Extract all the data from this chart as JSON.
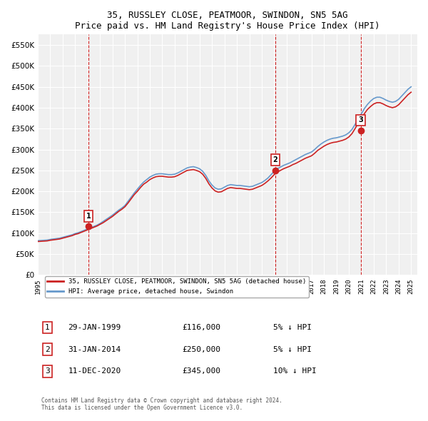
{
  "title": "35, RUSSLEY CLOSE, PEATMOOR, SWINDON, SN5 5AG",
  "subtitle": "Price paid vs. HM Land Registry's House Price Index (HPI)",
  "ylabel_ticks": [
    0,
    50000,
    100000,
    150000,
    200000,
    250000,
    300000,
    350000,
    400000,
    450000,
    500000,
    550000
  ],
  "ylim": [
    0,
    575000
  ],
  "xlim_start": 1995.0,
  "xlim_end": 2025.5,
  "background_color": "#ffffff",
  "plot_bg_color": "#f0f0f0",
  "grid_color": "#ffffff",
  "hpi_color": "#6699cc",
  "price_color": "#cc2222",
  "sale_marker_color": "#cc2222",
  "sales": [
    {
      "date_num": 1999.08,
      "price": 116000,
      "label": "1"
    },
    {
      "date_num": 2014.08,
      "price": 250000,
      "label": "2"
    },
    {
      "date_num": 2020.95,
      "price": 345000,
      "label": "3"
    }
  ],
  "sale_dates_str": [
    "29-JAN-1999",
    "31-JAN-2014",
    "11-DEC-2020"
  ],
  "sale_prices_str": [
    "£116,000",
    "£250,000",
    "£345,000"
  ],
  "sale_pct": [
    "5% ↓ HPI",
    "5% ↓ HPI",
    "10% ↓ HPI"
  ],
  "legend_house_label": "35, RUSSLEY CLOSE, PEATMOOR, SWINDON, SN5 5AG (detached house)",
  "legend_hpi_label": "HPI: Average price, detached house, Swindon",
  "footnote": "Contains HM Land Registry data © Crown copyright and database right 2024.\nThis data is licensed under the Open Government Licence v3.0.",
  "hpi_data_x": [
    1995.0,
    1995.25,
    1995.5,
    1995.75,
    1996.0,
    1996.25,
    1996.5,
    1996.75,
    1997.0,
    1997.25,
    1997.5,
    1997.75,
    1998.0,
    1998.25,
    1998.5,
    1998.75,
    1999.0,
    1999.25,
    1999.5,
    1999.75,
    2000.0,
    2000.25,
    2000.5,
    2000.75,
    2001.0,
    2001.25,
    2001.5,
    2001.75,
    2002.0,
    2002.25,
    2002.5,
    2002.75,
    2003.0,
    2003.25,
    2003.5,
    2003.75,
    2004.0,
    2004.25,
    2004.5,
    2004.75,
    2005.0,
    2005.25,
    2005.5,
    2005.75,
    2006.0,
    2006.25,
    2006.5,
    2006.75,
    2007.0,
    2007.25,
    2007.5,
    2007.75,
    2008.0,
    2008.25,
    2008.5,
    2008.75,
    2009.0,
    2009.25,
    2009.5,
    2009.75,
    2010.0,
    2010.25,
    2010.5,
    2010.75,
    2011.0,
    2011.25,
    2011.5,
    2011.75,
    2012.0,
    2012.25,
    2012.5,
    2012.75,
    2013.0,
    2013.25,
    2013.5,
    2013.75,
    2014.0,
    2014.25,
    2014.5,
    2014.75,
    2015.0,
    2015.25,
    2015.5,
    2015.75,
    2016.0,
    2016.25,
    2016.5,
    2016.75,
    2017.0,
    2017.25,
    2017.5,
    2017.75,
    2018.0,
    2018.25,
    2018.5,
    2018.75,
    2019.0,
    2019.25,
    2019.5,
    2019.75,
    2020.0,
    2020.25,
    2020.5,
    2020.75,
    2021.0,
    2021.25,
    2021.5,
    2021.75,
    2022.0,
    2022.25,
    2022.5,
    2022.75,
    2023.0,
    2023.25,
    2023.5,
    2023.75,
    2024.0,
    2024.25,
    2024.5,
    2024.75,
    2025.0
  ],
  "hpi_data_y": [
    82000,
    82500,
    83000,
    83500,
    85000,
    86000,
    87000,
    88000,
    90000,
    92000,
    94000,
    96000,
    99000,
    101000,
    104000,
    107000,
    110000,
    113000,
    116000,
    119000,
    123000,
    128000,
    133000,
    138000,
    143000,
    149000,
    155000,
    160000,
    166000,
    176000,
    186000,
    196000,
    205000,
    214000,
    222000,
    228000,
    234000,
    238000,
    241000,
    242000,
    242000,
    241000,
    240000,
    240000,
    241000,
    244000,
    248000,
    252000,
    256000,
    258000,
    259000,
    257000,
    254000,
    248000,
    238000,
    225000,
    215000,
    208000,
    205000,
    206000,
    210000,
    214000,
    216000,
    215000,
    214000,
    214000,
    213000,
    212000,
    211000,
    212000,
    215000,
    218000,
    221000,
    226000,
    232000,
    240000,
    248000,
    254000,
    258000,
    262000,
    265000,
    268000,
    272000,
    276000,
    280000,
    284000,
    288000,
    291000,
    294000,
    300000,
    307000,
    313000,
    318000,
    322000,
    325000,
    327000,
    328000,
    330000,
    332000,
    335000,
    340000,
    348000,
    360000,
    374000,
    385000,
    398000,
    408000,
    416000,
    422000,
    425000,
    425000,
    422000,
    418000,
    415000,
    413000,
    415000,
    420000,
    428000,
    436000,
    444000,
    450000
  ],
  "price_data_x": [
    1995.0,
    1995.25,
    1995.5,
    1995.75,
    1996.0,
    1996.25,
    1996.5,
    1996.75,
    1997.0,
    1997.25,
    1997.5,
    1997.75,
    1998.0,
    1998.25,
    1998.5,
    1998.75,
    1999.0,
    1999.25,
    1999.5,
    1999.75,
    2000.0,
    2000.25,
    2000.5,
    2000.75,
    2001.0,
    2001.25,
    2001.5,
    2001.75,
    2002.0,
    2002.25,
    2002.5,
    2002.75,
    2003.0,
    2003.25,
    2003.5,
    2003.75,
    2004.0,
    2004.25,
    2004.5,
    2004.75,
    2005.0,
    2005.25,
    2005.5,
    2005.75,
    2006.0,
    2006.25,
    2006.5,
    2006.75,
    2007.0,
    2007.25,
    2007.5,
    2007.75,
    2008.0,
    2008.25,
    2008.5,
    2008.75,
    2009.0,
    2009.25,
    2009.5,
    2009.75,
    2010.0,
    2010.25,
    2010.5,
    2010.75,
    2011.0,
    2011.25,
    2011.5,
    2011.75,
    2012.0,
    2012.25,
    2012.5,
    2012.75,
    2013.0,
    2013.25,
    2013.5,
    2013.75,
    2014.0,
    2014.25,
    2014.5,
    2014.75,
    2015.0,
    2015.25,
    2015.5,
    2015.75,
    2016.0,
    2016.25,
    2016.5,
    2016.75,
    2017.0,
    2017.25,
    2017.5,
    2017.75,
    2018.0,
    2018.25,
    2018.5,
    2018.75,
    2019.0,
    2019.25,
    2019.5,
    2019.75,
    2020.0,
    2020.25,
    2020.5,
    2020.75,
    2021.0,
    2021.25,
    2021.5,
    2021.75,
    2022.0,
    2022.25,
    2022.5,
    2022.75,
    2023.0,
    2023.25,
    2023.5,
    2023.75,
    2024.0,
    2024.25,
    2024.5,
    2024.75,
    2025.0
  ],
  "price_data_y": [
    80000,
    80500,
    81000,
    81500,
    83000,
    84000,
    85000,
    86000,
    88000,
    90000,
    92000,
    94000,
    97000,
    99000,
    102000,
    105000,
    108000,
    111000,
    114000,
    117000,
    121000,
    125000,
    130000,
    135000,
    140000,
    146000,
    152000,
    157000,
    163000,
    172000,
    182000,
    192000,
    200000,
    209000,
    217000,
    222000,
    228000,
    232000,
    235000,
    236000,
    236000,
    235000,
    234000,
    234000,
    235000,
    238000,
    242000,
    246000,
    250000,
    251000,
    252000,
    250000,
    247000,
    241000,
    231000,
    218000,
    208000,
    201000,
    198000,
    199000,
    203000,
    207000,
    209000,
    208000,
    207000,
    207000,
    206000,
    205000,
    204000,
    205000,
    208000,
    211000,
    214000,
    219000,
    225000,
    232000,
    240000,
    246000,
    250000,
    254000,
    257000,
    260000,
    264000,
    267000,
    271000,
    275000,
    279000,
    282000,
    285000,
    291000,
    298000,
    303000,
    308000,
    312000,
    315000,
    317000,
    318000,
    320000,
    322000,
    325000,
    330000,
    338000,
    350000,
    363000,
    373000,
    386000,
    396000,
    403000,
    409000,
    412000,
    412000,
    409000,
    405000,
    402000,
    400000,
    402000,
    407000,
    415000,
    423000,
    431000,
    437000
  ],
  "xticks": [
    1995,
    1996,
    1997,
    1998,
    1999,
    2000,
    2001,
    2002,
    2003,
    2004,
    2005,
    2006,
    2007,
    2008,
    2009,
    2010,
    2011,
    2012,
    2013,
    2014,
    2015,
    2016,
    2017,
    2018,
    2019,
    2020,
    2021,
    2022,
    2023,
    2024,
    2025
  ],
  "vline_color": "#cc2222",
  "vline_style": "--",
  "vline_dates": [
    1999.08,
    2014.08,
    2020.95
  ]
}
